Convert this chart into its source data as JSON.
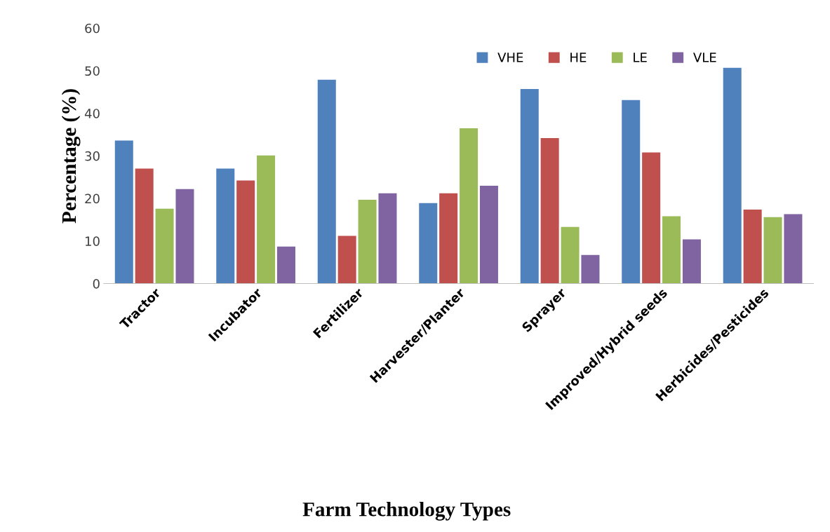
{
  "chart_data": {
    "type": "bar",
    "xlabel": "Farm Technology Types",
    "ylabel": "Percentage (%)",
    "categories": [
      "Tractor",
      "Incubator",
      "Fertilizer",
      "Harvester/Planter",
      "Sprayer",
      "Improved/Hybrid seeds",
      "Herbicides/Pesticides"
    ],
    "series": [
      {
        "name": "VHE",
        "color": "#4f81bd",
        "values": [
          33.6,
          27.0,
          47.9,
          18.9,
          45.7,
          43.1,
          50.7
        ]
      },
      {
        "name": "HE",
        "color": "#c0504d",
        "values": [
          27.0,
          24.2,
          11.2,
          21.2,
          34.2,
          30.8,
          17.4
        ]
      },
      {
        "name": "LE",
        "color": "#9bbb59",
        "values": [
          17.6,
          30.1,
          19.7,
          36.5,
          13.3,
          15.8,
          15.6
        ]
      },
      {
        "name": "VLE",
        "color": "#8064a2",
        "values": [
          22.2,
          8.7,
          21.2,
          23.0,
          6.7,
          10.4,
          16.3
        ]
      }
    ],
    "ylim": [
      0,
      60
    ],
    "yticks": [
      0,
      10,
      20,
      30,
      40,
      50,
      60
    ],
    "grid": false,
    "legend": "top right"
  }
}
